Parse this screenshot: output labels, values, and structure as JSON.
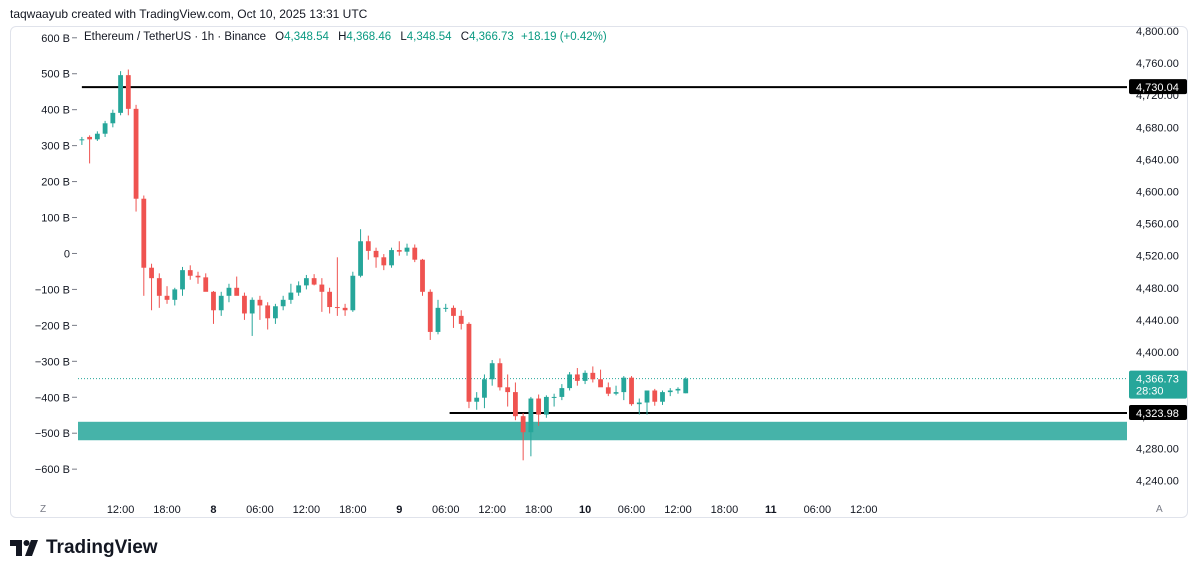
{
  "caption": "taqwaayub created with TradingView.com, Oct 10, 2025 13:31 UTC",
  "legend": {
    "symbol": "Ethereum / TetherUS · 1h · Binance",
    "o_label": "O",
    "o_value": "4,348.54",
    "h_label": "H",
    "h_value": "4,368.46",
    "l_label": "L",
    "l_value": "4,348.54",
    "c_label": "C",
    "c_value": "4,366.73",
    "change": "+18.19 (+0.42%)"
  },
  "corner_left": "Z",
  "corner_right": "A",
  "logo_text": "TradingView",
  "colors": {
    "up": "#26a69a",
    "down": "#ef5350",
    "zone": "#26a69a"
  },
  "chart_data": {
    "type": "candlestick",
    "title": "Ethereum / TetherUS · 1h · Binance",
    "right_axis": {
      "ticks": [
        4800,
        4760,
        4720,
        4680,
        4640,
        4600,
        4560,
        4520,
        4480,
        4440,
        4400,
        4360,
        4320,
        4280,
        4240
      ],
      "tick_labels": [
        "4,800.00",
        "4,760.00",
        "4,720.00",
        "4,680.00",
        "4,640.00",
        "4,600.00",
        "4,560.00",
        "4,520.00",
        "4,480.00",
        "4,440.00",
        "4,400.00",
        "4,360.00",
        "4,320.00",
        "4,280.00",
        "4,240.00"
      ],
      "range": [
        4228,
        4805
      ]
    },
    "left_axis": {
      "tick_labels": [
        "600 B",
        "500 B",
        "400 B",
        "300 B",
        "200 B",
        "100 B",
        "0",
        "−100 B",
        "−200 B",
        "−300 B",
        "−400 B",
        "−500 B",
        "−600 B"
      ],
      "ticks": [
        600,
        500,
        400,
        300,
        200,
        100,
        0,
        -100,
        -200,
        -300,
        -400,
        -500,
        -600
      ],
      "range": [
        -658,
        630
      ]
    },
    "x_axis": {
      "range": [
        6.5,
        142
      ],
      "ticks": [
        {
          "x": 12,
          "label": "12:00",
          "bold": false
        },
        {
          "x": 18,
          "label": "18:00",
          "bold": false
        },
        {
          "x": 24,
          "label": "8",
          "bold": true
        },
        {
          "x": 30,
          "label": "06:00",
          "bold": false
        },
        {
          "x": 36,
          "label": "12:00",
          "bold": false
        },
        {
          "x": 42,
          "label": "18:00",
          "bold": false
        },
        {
          "x": 48,
          "label": "9",
          "bold": true
        },
        {
          "x": 54,
          "label": "06:00",
          "bold": false
        },
        {
          "x": 60,
          "label": "12:00",
          "bold": false
        },
        {
          "x": 66,
          "label": "18:00",
          "bold": false
        },
        {
          "x": 72,
          "label": "10",
          "bold": true
        },
        {
          "x": 78,
          "label": "06:00",
          "bold": false
        },
        {
          "x": 84,
          "label": "12:00",
          "bold": false
        },
        {
          "x": 90,
          "label": "18:00",
          "bold": false
        },
        {
          "x": 96,
          "label": "11",
          "bold": true
        },
        {
          "x": 102,
          "label": "06:00",
          "bold": false
        },
        {
          "x": 108,
          "label": "12:00",
          "bold": false
        }
      ]
    },
    "candles": [
      {
        "x": 7,
        "o": 4665,
        "h": 4668,
        "l": 4658,
        "c": 4665
      },
      {
        "x": 8,
        "o": 4668,
        "h": 4670,
        "l": 4635,
        "c": 4665
      },
      {
        "x": 9,
        "o": 4665,
        "h": 4675,
        "l": 4663,
        "c": 4672
      },
      {
        "x": 10,
        "o": 4672,
        "h": 4688,
        "l": 4668,
        "c": 4685
      },
      {
        "x": 11,
        "o": 4685,
        "h": 4702,
        "l": 4680,
        "c": 4698
      },
      {
        "x": 12,
        "o": 4698,
        "h": 4750,
        "l": 4695,
        "c": 4745
      },
      {
        "x": 13,
        "o": 4745,
        "h": 4752,
        "l": 4695,
        "c": 4703
      },
      {
        "x": 14,
        "o": 4703,
        "h": 4708,
        "l": 4575,
        "c": 4591
      },
      {
        "x": 15,
        "o": 4591,
        "h": 4595,
        "l": 4470,
        "c": 4505
      },
      {
        "x": 16,
        "o": 4505,
        "h": 4510,
        "l": 4452,
        "c": 4492
      },
      {
        "x": 17,
        "o": 4492,
        "h": 4498,
        "l": 4455,
        "c": 4470
      },
      {
        "x": 18,
        "o": 4470,
        "h": 4482,
        "l": 4460,
        "c": 4465
      },
      {
        "x": 19,
        "o": 4465,
        "h": 4480,
        "l": 4458,
        "c": 4478
      },
      {
        "x": 20,
        "o": 4478,
        "h": 4506,
        "l": 4470,
        "c": 4502
      },
      {
        "x": 21,
        "o": 4502,
        "h": 4508,
        "l": 4490,
        "c": 4495
      },
      {
        "x": 22,
        "o": 4495,
        "h": 4500,
        "l": 4485,
        "c": 4493
      },
      {
        "x": 23,
        "o": 4493,
        "h": 4498,
        "l": 4478,
        "c": 4475
      },
      {
        "x": 24,
        "o": 4475,
        "h": 4476,
        "l": 4435,
        "c": 4452
      },
      {
        "x": 25,
        "o": 4452,
        "h": 4475,
        "l": 4445,
        "c": 4470
      },
      {
        "x": 26,
        "o": 4470,
        "h": 4485,
        "l": 4462,
        "c": 4480
      },
      {
        "x": 27,
        "o": 4480,
        "h": 4494,
        "l": 4476,
        "c": 4470
      },
      {
        "x": 28,
        "o": 4470,
        "h": 4474,
        "l": 4440,
        "c": 4448
      },
      {
        "x": 29,
        "o": 4448,
        "h": 4468,
        "l": 4420,
        "c": 4465
      },
      {
        "x": 30,
        "o": 4465,
        "h": 4470,
        "l": 4440,
        "c": 4458
      },
      {
        "x": 31,
        "o": 4458,
        "h": 4462,
        "l": 4428,
        "c": 4442
      },
      {
        "x": 32,
        "o": 4442,
        "h": 4460,
        "l": 4435,
        "c": 4457
      },
      {
        "x": 33,
        "o": 4457,
        "h": 4470,
        "l": 4452,
        "c": 4465
      },
      {
        "x": 34,
        "o": 4465,
        "h": 4485,
        "l": 4460,
        "c": 4474
      },
      {
        "x": 35,
        "o": 4474,
        "h": 4488,
        "l": 4470,
        "c": 4483
      },
      {
        "x": 36,
        "o": 4483,
        "h": 4496,
        "l": 4478,
        "c": 4492
      },
      {
        "x": 37,
        "o": 4492,
        "h": 4497,
        "l": 4483,
        "c": 4484
      },
      {
        "x": 38,
        "o": 4484,
        "h": 4492,
        "l": 4450,
        "c": 4475
      },
      {
        "x": 39,
        "o": 4475,
        "h": 4480,
        "l": 4448,
        "c": 4456
      },
      {
        "x": 40,
        "o": 4456,
        "h": 4518,
        "l": 4445,
        "c": 4455
      },
      {
        "x": 41,
        "o": 4455,
        "h": 4460,
        "l": 4445,
        "c": 4452
      },
      {
        "x": 42,
        "o": 4452,
        "h": 4500,
        "l": 4450,
        "c": 4495
      },
      {
        "x": 43,
        "o": 4495,
        "h": 4553,
        "l": 4493,
        "c": 4538
      },
      {
        "x": 44,
        "o": 4538,
        "h": 4545,
        "l": 4515,
        "c": 4526
      },
      {
        "x": 45,
        "o": 4526,
        "h": 4530,
        "l": 4505,
        "c": 4518
      },
      {
        "x": 46,
        "o": 4518,
        "h": 4522,
        "l": 4502,
        "c": 4508
      },
      {
        "x": 47,
        "o": 4508,
        "h": 4530,
        "l": 4505,
        "c": 4527
      },
      {
        "x": 48,
        "o": 4527,
        "h": 4538,
        "l": 4520,
        "c": 4525
      },
      {
        "x": 49,
        "o": 4525,
        "h": 4535,
        "l": 4520,
        "c": 4530
      },
      {
        "x": 50,
        "o": 4530,
        "h": 4534,
        "l": 4512,
        "c": 4515
      },
      {
        "x": 51,
        "o": 4515,
        "h": 4516,
        "l": 4470,
        "c": 4475
      },
      {
        "x": 52,
        "o": 4475,
        "h": 4478,
        "l": 4415,
        "c": 4425
      },
      {
        "x": 53,
        "o": 4425,
        "h": 4465,
        "l": 4422,
        "c": 4455
      },
      {
        "x": 54,
        "o": 4455,
        "h": 4460,
        "l": 4450,
        "c": 4455
      },
      {
        "x": 55,
        "o": 4455,
        "h": 4458,
        "l": 4430,
        "c": 4445
      },
      {
        "x": 56,
        "o": 4445,
        "h": 4452,
        "l": 4428,
        "c": 4435
      },
      {
        "x": 57,
        "o": 4435,
        "h": 4437,
        "l": 4330,
        "c": 4338
      },
      {
        "x": 58,
        "o": 4338,
        "h": 4350,
        "l": 4328,
        "c": 4343
      },
      {
        "x": 59,
        "o": 4343,
        "h": 4372,
        "l": 4330,
        "c": 4366
      },
      {
        "x": 60,
        "o": 4366,
        "h": 4390,
        "l": 4358,
        "c": 4386
      },
      {
        "x": 61,
        "o": 4386,
        "h": 4392,
        "l": 4352,
        "c": 4356
      },
      {
        "x": 62,
        "o": 4356,
        "h": 4372,
        "l": 4332,
        "c": 4350
      },
      {
        "x": 63,
        "o": 4350,
        "h": 4362,
        "l": 4315,
        "c": 4320
      },
      {
        "x": 64,
        "o": 4320,
        "h": 4324,
        "l": 4265,
        "c": 4300
      },
      {
        "x": 65,
        "o": 4300,
        "h": 4344,
        "l": 4270,
        "c": 4342
      },
      {
        "x": 66,
        "o": 4342,
        "h": 4347,
        "l": 4308,
        "c": 4322
      },
      {
        "x": 67,
        "o": 4322,
        "h": 4346,
        "l": 4318,
        "c": 4344
      },
      {
        "x": 68,
        "o": 4344,
        "h": 4348,
        "l": 4332,
        "c": 4344
      },
      {
        "x": 69,
        "o": 4344,
        "h": 4360,
        "l": 4340,
        "c": 4355
      },
      {
        "x": 70,
        "o": 4355,
        "h": 4375,
        "l": 4352,
        "c": 4372
      },
      {
        "x": 71,
        "o": 4372,
        "h": 4380,
        "l": 4358,
        "c": 4364
      },
      {
        "x": 72,
        "o": 4364,
        "h": 4377,
        "l": 4360,
        "c": 4374
      },
      {
        "x": 73,
        "o": 4374,
        "h": 4382,
        "l": 4362,
        "c": 4366
      },
      {
        "x": 74,
        "o": 4366,
        "h": 4378,
        "l": 4357,
        "c": 4356
      },
      {
        "x": 75,
        "o": 4356,
        "h": 4362,
        "l": 4345,
        "c": 4348
      },
      {
        "x": 76,
        "o": 4348,
        "h": 4358,
        "l": 4346,
        "c": 4350
      },
      {
        "x": 77,
        "o": 4350,
        "h": 4370,
        "l": 4340,
        "c": 4368
      },
      {
        "x": 78,
        "o": 4368,
        "h": 4370,
        "l": 4333,
        "c": 4335
      },
      {
        "x": 79,
        "o": 4335,
        "h": 4342,
        "l": 4322,
        "c": 4337
      },
      {
        "x": 80,
        "o": 4337,
        "h": 4352,
        "l": 4322,
        "c": 4352
      },
      {
        "x": 81,
        "o": 4352,
        "h": 4354,
        "l": 4333,
        "c": 4338
      },
      {
        "x": 82,
        "o": 4338,
        "h": 4352,
        "l": 4334,
        "c": 4350
      },
      {
        "x": 83,
        "o": 4350,
        "h": 4355,
        "l": 4345,
        "c": 4352
      },
      {
        "x": 84,
        "o": 4352,
        "h": 4356,
        "l": 4348,
        "c": 4354
      },
      {
        "x": 85,
        "o": 4348.54,
        "h": 4368.46,
        "l": 4348.54,
        "c": 4366.73
      }
    ],
    "horizontal_lines": [
      {
        "price": 4730.04,
        "label": "4,730.04",
        "x_start": 7
      },
      {
        "price": 4323.98,
        "label": "4,323.98",
        "x_start": 54.5
      }
    ],
    "zone": {
      "top": 4313,
      "bottom": 4290
    },
    "last_price": {
      "price": 4366.73,
      "label": "4,366.73",
      "countdown": "28:30"
    }
  }
}
